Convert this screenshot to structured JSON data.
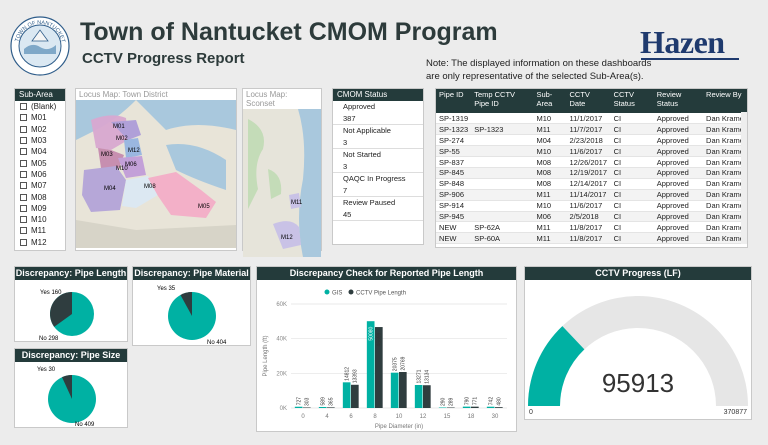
{
  "header": {
    "title": "Town of Nantucket CMOM Program",
    "subtitle": "CCTV Progress Report",
    "note": "Note: The displayed information on these dashboards are only representative of the selected Sub-Area(s).",
    "brand": "Hazen",
    "seal_text": "TOWN OF NANTUCKET"
  },
  "subarea": {
    "title": "Sub-Area",
    "items": [
      "(Blank)",
      "M01",
      "M02",
      "M03",
      "M04",
      "M05",
      "M06",
      "M07",
      "M08",
      "M09",
      "M10",
      "M11",
      "M12"
    ]
  },
  "maps": {
    "town_title": "Locus Map: Town District",
    "sconset_title": "Locus Map: Sconset",
    "town_labels": [
      "M01",
      "M02",
      "M03",
      "M12",
      "M06",
      "M04",
      "M08",
      "M05",
      "M10"
    ],
    "sconset_labels": [
      "M11",
      "M12"
    ]
  },
  "status": {
    "title": "CMOM Status",
    "items": [
      {
        "label": "Approved",
        "value": "387"
      },
      {
        "label": "Not Applicable",
        "value": "3"
      },
      {
        "label": "Not Started",
        "value": "3"
      },
      {
        "label": "QAQC In Progress",
        "value": "7"
      },
      {
        "label": "Review Paused",
        "value": "45"
      }
    ]
  },
  "table": {
    "columns": [
      "Pipe ID",
      "Temp CCTV Pipe ID",
      "Sub-Area",
      "CCTV Date",
      "CCTV Status",
      "Review Status",
      "Review By"
    ],
    "rows": [
      [
        "SP-1319",
        "",
        "M10",
        "11/1/2017",
        "CI",
        "Approved",
        "Dan Krame"
      ],
      [
        "SP-1323",
        "SP-1323",
        "M11",
        "11/7/2017",
        "CI",
        "Approved",
        "Dan Krame"
      ],
      [
        "SP-274",
        "",
        "M04",
        "2/23/2018",
        "CI",
        "Approved",
        "Dan Krame"
      ],
      [
        "SP-55",
        "",
        "M10",
        "11/6/2017",
        "CI",
        "Approved",
        "Dan Krame"
      ],
      [
        "SP-837",
        "",
        "M08",
        "12/26/2017",
        "CI",
        "Approved",
        "Dan Krame"
      ],
      [
        "SP-845",
        "",
        "M08",
        "12/19/2017",
        "CI",
        "Approved",
        "Dan Krame"
      ],
      [
        "SP-848",
        "",
        "M08",
        "12/14/2017",
        "CI",
        "Approved",
        "Dan Krame"
      ],
      [
        "SP-906",
        "",
        "M11",
        "11/14/2017",
        "CI",
        "Approved",
        "Dan Krame"
      ],
      [
        "SP-914",
        "",
        "M10",
        "11/6/2017",
        "CI",
        "Approved",
        "Dan Krame"
      ],
      [
        "SP-945",
        "",
        "M06",
        "2/5/2018",
        "CI",
        "Approved",
        "Dan Krame"
      ],
      [
        "NEW",
        "SP-62A",
        "M11",
        "11/8/2017",
        "CI",
        "Approved",
        "Dan Krame"
      ],
      [
        "NEW",
        "SP-60A",
        "M11",
        "11/8/2017",
        "CI",
        "Approved",
        "Dan Krame"
      ]
    ]
  },
  "pies": {
    "length": {
      "title": "Discrepancy: Pipe Length",
      "yes_label": "Yes 160",
      "no_label": "No 298"
    },
    "material": {
      "title": "Discrepancy: Pipe Material",
      "yes_label": "Yes 35",
      "no_label": "No 404"
    },
    "size": {
      "title": "Discrepancy: Pipe Size",
      "yes_label": "Yes 30",
      "no_label": "No 409"
    }
  },
  "gauge": {
    "title": "CCTV Progress (LF)",
    "value_label": "95913",
    "min_label": "0",
    "max_label": "370877"
  },
  "colors": {
    "teal": "#00b1a3",
    "dark": "#2f3d3f",
    "header": "#243b3b",
    "brand": "#1f3a6e"
  },
  "chart_data": [
    {
      "type": "pie",
      "title": "Discrepancy: Pipe Length",
      "slices": [
        {
          "name": "Yes",
          "value": 160
        },
        {
          "name": "No",
          "value": 298
        }
      ]
    },
    {
      "type": "pie",
      "title": "Discrepancy: Pipe Material",
      "slices": [
        {
          "name": "Yes",
          "value": 35
        },
        {
          "name": "No",
          "value": 404
        }
      ]
    },
    {
      "type": "pie",
      "title": "Discrepancy: Pipe Size",
      "slices": [
        {
          "name": "Yes",
          "value": 30
        },
        {
          "name": "No",
          "value": 409
        }
      ]
    },
    {
      "type": "bar",
      "title": "Discrepancy Check for Reported Pipe Length",
      "xlabel": "Pipe Diameter (in)",
      "ylabel": "Pipe Length (ft)",
      "categories": [
        "0",
        "4",
        "6",
        "8",
        "10",
        "12",
        "15",
        "18",
        "30"
      ],
      "ylim": [
        0,
        60000
      ],
      "yticks": [
        "0K",
        "20K",
        "40K",
        "60K"
      ],
      "series": [
        {
          "name": "GIS",
          "values": [
            727,
            589,
            14812,
            50080,
            20375,
            13271,
            290,
            790,
            742
          ],
          "labels": [
            "727",
            "589",
            "14812",
            "50080",
            "20375",
            "13271",
            "290",
            "790",
            "742"
          ]
        },
        {
          "name": "CCTV Pipe Length",
          "values": [
            303,
            365,
            13393,
            46699,
            20769,
            13134,
            289,
            771,
            480
          ],
          "labels": [
            "303",
            "365",
            "13393",
            "46699",
            "20769",
            "13134",
            "289",
            "771",
            "480"
          ]
        }
      ],
      "legend": "top-left"
    },
    {
      "type": "gauge",
      "title": "CCTV Progress (LF)",
      "value": 95913,
      "min": 0,
      "max": 370877
    }
  ]
}
